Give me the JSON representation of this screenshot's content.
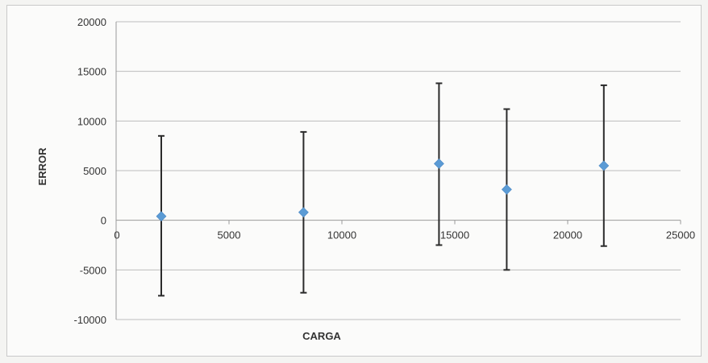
{
  "chart_data": {
    "type": "scatter",
    "title": "",
    "xlabel": "CARGA",
    "ylabel": "ERROR",
    "xlim": [
      0,
      25000
    ],
    "ylim": [
      -10000,
      20000
    ],
    "x_ticks": [
      0,
      5000,
      10000,
      15000,
      20000,
      25000
    ],
    "y_ticks": [
      20000,
      15000,
      10000,
      5000,
      0,
      -5000,
      -10000
    ],
    "grid": "horizontal",
    "legend": "none",
    "series": [
      {
        "points": [
          {
            "x": 2000,
            "y": 400,
            "err_low": -7600,
            "err_high": 8500
          },
          {
            "x": 8300,
            "y": 800,
            "err_low": -7300,
            "err_high": 8900
          },
          {
            "x": 14300,
            "y": 5700,
            "err_low": -2500,
            "err_high": 13800
          },
          {
            "x": 17300,
            "y": 3100,
            "err_low": -5000,
            "err_high": 11200
          },
          {
            "x": 21600,
            "y": 5500,
            "err_low": -2600,
            "err_high": 13600
          }
        ]
      }
    ],
    "colors": {
      "marker": "#5b9bd5",
      "error_bar": "#2b2b2b",
      "grid": "#bdbdbd",
      "axis": "#9a9a9a"
    }
  }
}
